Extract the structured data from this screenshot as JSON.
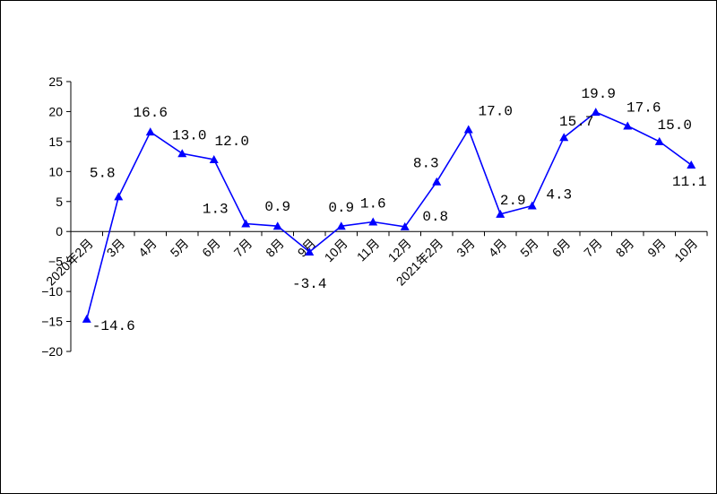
{
  "chart_data": {
    "type": "line",
    "categories": [
      "2020年2月",
      "3月",
      "4月",
      "5月",
      "6月",
      "7月",
      "8月",
      "9月",
      "10月",
      "11月",
      "12月",
      "2021年2月",
      "3月",
      "4月",
      "5月",
      "6月",
      "7月",
      "8月",
      "9月",
      "10月"
    ],
    "series": [
      {
        "values": [
          -14.6,
          5.8,
          16.6,
          13.0,
          12.0,
          1.3,
          0.9,
          -3.4,
          0.9,
          1.6,
          0.8,
          8.3,
          17.0,
          2.9,
          4.3,
          15.7,
          19.9,
          17.6,
          15.0,
          11.1
        ],
        "labels": [
          "-14.6",
          "5.8",
          "16.6",
          "13.0",
          "12.0",
          "1.3",
          "0.9",
          "-3.4",
          "0.9",
          "1.6",
          "0.8",
          "8.3",
          "17.0",
          "2.9",
          "4.3",
          "15.7",
          "19.9",
          "17.6",
          "15.0",
          "11.1"
        ],
        "color": "#0000ff"
      }
    ],
    "yticks": [
      "25",
      "20",
      "15",
      "10",
      "5",
      "0",
      "-5",
      "-10",
      "-15",
      "-20"
    ],
    "ylim": [
      -20,
      25
    ],
    "grid": false,
    "marker": "triangle",
    "title": "",
    "xlabel": "",
    "ylabel": ""
  }
}
